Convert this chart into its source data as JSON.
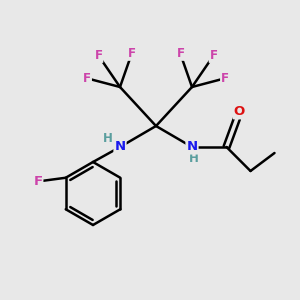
{
  "background_color": "#e8e8e8",
  "bond_color": "#000000",
  "bond_width": 1.8,
  "atom_colors": {
    "C": "#000000",
    "H": "#5a9e9e",
    "N": "#1a1aee",
    "O": "#dd1111",
    "F": "#cc44aa"
  },
  "fig_width": 3.0,
  "fig_height": 3.0,
  "dpi": 100
}
